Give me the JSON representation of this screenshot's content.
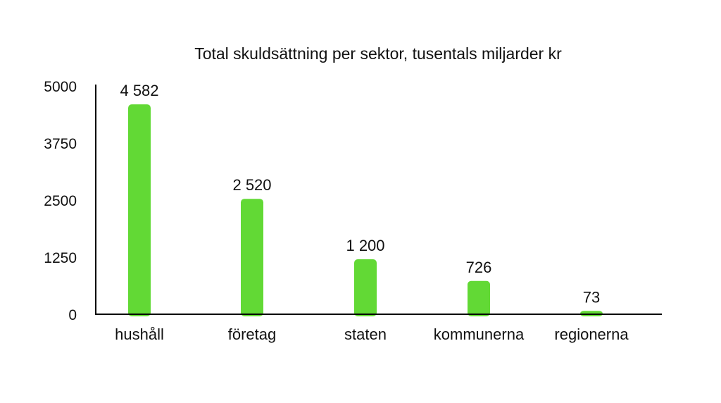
{
  "chart_data": {
    "type": "bar",
    "title": "Total skuldsättning per sektor, tusentals miljarder kr",
    "xlabel": "",
    "ylabel": "",
    "categories": [
      "hushåll",
      "företag",
      "staten",
      "kommunerna",
      "regionerna"
    ],
    "values": [
      4582,
      2520,
      1200,
      726,
      73
    ],
    "data_labels": [
      "4 582",
      "2 520",
      "1 200",
      "726",
      "73"
    ],
    "yticks": [
      "0",
      "1250",
      "2500",
      "3750",
      "5000"
    ],
    "ylim": [
      0,
      5000
    ],
    "grid": false,
    "legend": "none",
    "bar_color": "#62d935"
  }
}
